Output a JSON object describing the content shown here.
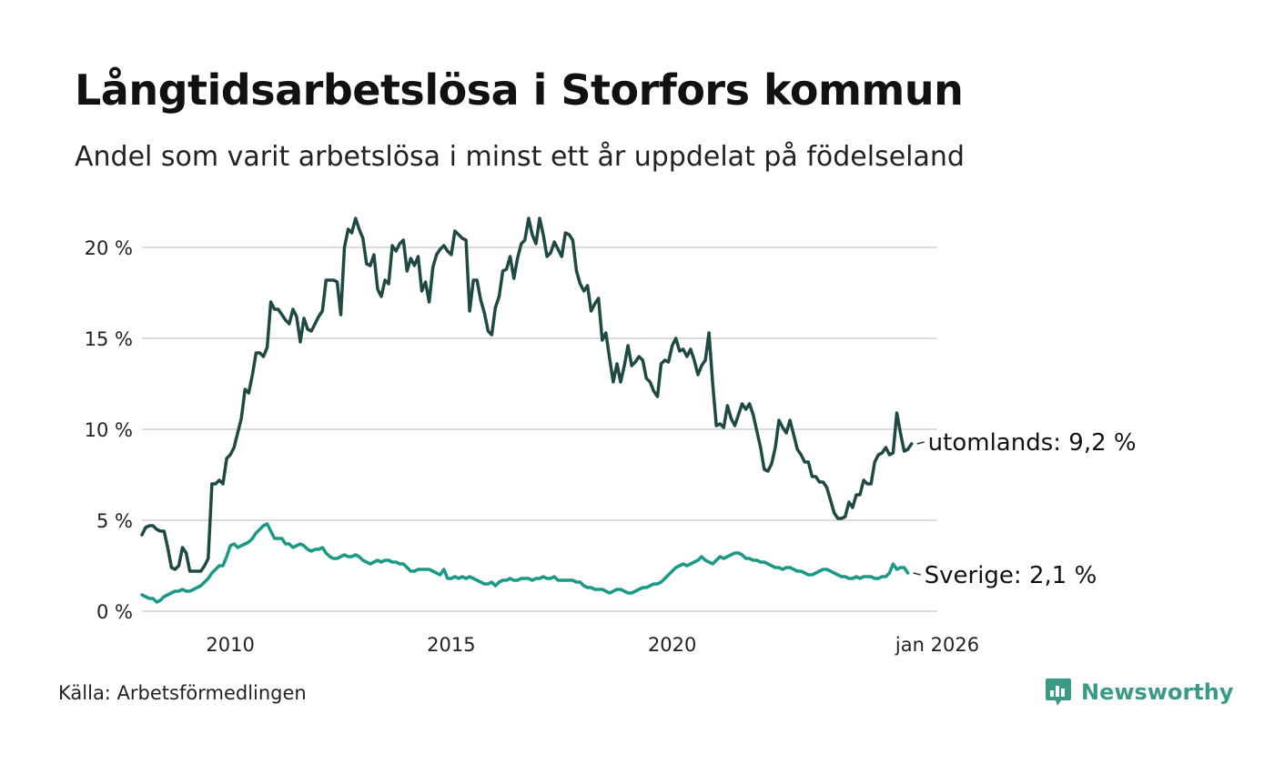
{
  "title": "Långtidsarbetslösa i Storfors kommun",
  "subtitle": "Andel som varit arbetslösa i minst ett år uppdelat på födelseland",
  "source": "Källa: Arbetsförmedlingen",
  "brand": {
    "name": "Newsworthy",
    "icon": "newsworthy-logo-icon",
    "color": "#3a9a86"
  },
  "chart_data": {
    "type": "line",
    "title": "Långtidsarbetslösa i Storfors kommun",
    "xlabel": "",
    "ylabel": "",
    "x_start": 2008.0,
    "x_step": 0.0833333,
    "xlim": [
      2008.0,
      2026.0
    ],
    "ylim": [
      0,
      21
    ],
    "grid": true,
    "y_ticks": [
      {
        "value": 0,
        "label": "0 %"
      },
      {
        "value": 5,
        "label": "5 %"
      },
      {
        "value": 10,
        "label": "10 %"
      },
      {
        "value": 15,
        "label": "15 %"
      },
      {
        "value": 20,
        "label": "20 %"
      }
    ],
    "x_ticks": [
      {
        "value": 2010.0,
        "label": "2010"
      },
      {
        "value": 2015.0,
        "label": "2015"
      },
      {
        "value": 2020.0,
        "label": "2020"
      },
      {
        "value": 2026.0,
        "label": "jan 2026"
      }
    ],
    "series": [
      {
        "name": "utomlands",
        "color": "#1f4a44",
        "end_label": "utomlands: 9,2 %",
        "values": [
          4.2,
          4.6,
          4.7,
          4.7,
          4.5,
          4.4,
          4.4,
          3.5,
          2.4,
          2.3,
          2.5,
          3.5,
          3.2,
          2.2,
          2.2,
          2.2,
          2.2,
          2.5,
          2.9,
          7.0,
          7.0,
          7.2,
          7.0,
          8.4,
          8.6,
          9.0,
          9.8,
          10.6,
          12.2,
          12.0,
          13.0,
          14.2,
          14.2,
          14.0,
          14.5,
          17.0,
          16.6,
          16.6,
          16.3,
          16.0,
          15.8,
          16.6,
          16.2,
          14.8,
          16.1,
          15.5,
          15.4,
          15.8,
          16.2,
          16.5,
          18.2,
          18.2,
          18.2,
          18.1,
          16.3,
          20.0,
          21.0,
          20.8,
          21.6,
          21.0,
          20.5,
          19.1,
          19.0,
          19.6,
          17.7,
          17.3,
          18.2,
          18.0,
          20.1,
          19.8,
          20.2,
          20.4,
          18.7,
          19.4,
          19.0,
          19.5,
          17.6,
          18.1,
          17.0,
          18.9,
          19.6,
          19.9,
          20.1,
          19.8,
          19.6,
          20.9,
          20.7,
          20.5,
          20.4,
          16.5,
          18.2,
          18.2,
          17.1,
          16.4,
          15.4,
          15.2,
          16.7,
          17.3,
          18.7,
          18.8,
          19.5,
          18.3,
          19.4,
          20.2,
          20.4,
          21.6,
          20.7,
          20.2,
          21.6,
          20.7,
          19.5,
          19.7,
          20.3,
          19.9,
          19.5,
          20.8,
          20.7,
          20.4,
          18.7,
          18.0,
          17.6,
          17.9,
          16.5,
          16.9,
          17.2,
          14.9,
          15.3,
          13.9,
          12.6,
          13.6,
          12.6,
          13.5,
          14.6,
          13.5,
          13.7,
          14.0,
          13.8,
          12.8,
          12.6,
          12.1,
          11.8,
          13.6,
          13.8,
          13.7,
          14.6,
          15.0,
          14.3,
          14.4,
          14.0,
          14.4,
          13.8,
          13.0,
          13.5,
          13.8,
          15.3,
          12.5,
          10.2,
          10.3,
          10.1,
          11.3,
          10.6,
          10.2,
          10.8,
          11.4,
          11.1,
          11.4,
          10.8,
          9.9,
          9.0,
          7.8,
          7.7,
          8.1,
          9.0,
          10.5,
          10.1,
          9.8,
          10.5,
          9.7,
          8.9,
          8.6,
          8.2,
          8.2,
          7.4,
          7.4,
          7.1,
          7.1,
          6.8,
          6.1,
          5.4,
          5.1,
          5.1,
          5.2,
          6.0,
          5.7,
          6.4,
          6.4,
          7.2,
          7.0,
          7.0,
          8.2,
          8.6,
          8.7,
          9.0,
          8.6,
          8.7,
          10.9,
          9.8,
          8.8,
          8.9,
          9.2
        ]
      },
      {
        "name": "Sverige",
        "color": "#1a9a86",
        "end_label": "Sverige: 2,1 %",
        "values": [
          0.9,
          0.8,
          0.7,
          0.7,
          0.5,
          0.6,
          0.8,
          0.9,
          1.0,
          1.1,
          1.1,
          1.2,
          1.1,
          1.1,
          1.2,
          1.3,
          1.4,
          1.6,
          1.8,
          2.1,
          2.3,
          2.5,
          2.5,
          3.0,
          3.6,
          3.7,
          3.5,
          3.6,
          3.7,
          3.8,
          4.0,
          4.3,
          4.5,
          4.7,
          4.8,
          4.4,
          4.0,
          4.0,
          4.0,
          3.7,
          3.7,
          3.5,
          3.6,
          3.7,
          3.6,
          3.4,
          3.3,
          3.4,
          3.4,
          3.5,
          3.2,
          3.0,
          2.9,
          2.9,
          3.0,
          3.1,
          3.0,
          3.0,
          3.1,
          3.0,
          2.8,
          2.7,
          2.6,
          2.7,
          2.8,
          2.7,
          2.8,
          2.8,
          2.7,
          2.7,
          2.6,
          2.6,
          2.4,
          2.2,
          2.2,
          2.3,
          2.3,
          2.3,
          2.3,
          2.2,
          2.1,
          2.0,
          2.3,
          1.8,
          1.8,
          1.9,
          1.8,
          1.9,
          1.8,
          1.9,
          1.8,
          1.7,
          1.6,
          1.5,
          1.5,
          1.6,
          1.4,
          1.6,
          1.7,
          1.7,
          1.8,
          1.7,
          1.7,
          1.8,
          1.8,
          1.8,
          1.7,
          1.8,
          1.8,
          1.9,
          1.8,
          1.8,
          1.9,
          1.7,
          1.7,
          1.7,
          1.7,
          1.7,
          1.6,
          1.6,
          1.4,
          1.3,
          1.3,
          1.2,
          1.2,
          1.2,
          1.1,
          1.0,
          1.1,
          1.2,
          1.2,
          1.1,
          1.0,
          1.0,
          1.1,
          1.2,
          1.3,
          1.3,
          1.4,
          1.5,
          1.5,
          1.6,
          1.8,
          2.0,
          2.2,
          2.4,
          2.5,
          2.6,
          2.5,
          2.6,
          2.7,
          2.8,
          3.0,
          2.8,
          2.7,
          2.6,
          2.8,
          3.0,
          2.9,
          3.0,
          3.1,
          3.2,
          3.2,
          3.1,
          2.9,
          2.9,
          2.8,
          2.8,
          2.7,
          2.7,
          2.6,
          2.5,
          2.4,
          2.4,
          2.3,
          2.4,
          2.4,
          2.3,
          2.2,
          2.2,
          2.1,
          2.0,
          2.0,
          2.1,
          2.2,
          2.3,
          2.3,
          2.2,
          2.1,
          2.0,
          1.9,
          1.9,
          1.8,
          1.8,
          1.9,
          1.8,
          1.9,
          1.9,
          1.9,
          1.8,
          1.8,
          1.9,
          1.9,
          2.1,
          2.6,
          2.3,
          2.4,
          2.4,
          2.1
        ]
      }
    ]
  }
}
